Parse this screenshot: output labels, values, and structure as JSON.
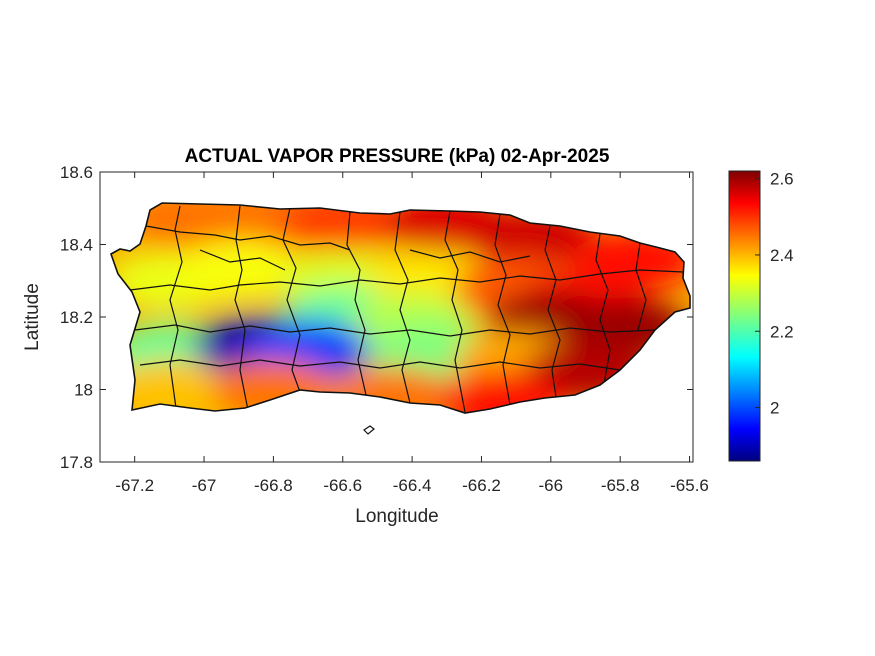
{
  "chart_data": {
    "type": "heatmap",
    "title": "ACTUAL VAPOR PRESSURE (kPa) 02-Apr-2025",
    "xlabel": "Longitude",
    "ylabel": "Latitude",
    "xlim": [
      -67.3,
      -65.59
    ],
    "ylim": [
      17.8,
      18.6
    ],
    "xticks": [
      -67.2,
      -67,
      -66.8,
      -66.6,
      -66.4,
      -66.2,
      -66,
      -65.8,
      -65.6
    ],
    "xtick_labels": [
      "-67.2",
      "-67",
      "-66.8",
      "-66.6",
      "-66.4",
      "-66.2",
      "-66",
      "-65.8",
      "-65.6"
    ],
    "yticks": [
      17.8,
      18,
      18.2,
      18.4,
      18.6
    ],
    "ytick_labels": [
      "17.8",
      "18",
      "18.2",
      "18.4",
      "18.6"
    ],
    "colorbar": {
      "colormap": "jet",
      "range": [
        1.86,
        2.62
      ],
      "ticks": [
        2,
        2.2,
        2.4,
        2.6
      ],
      "tick_labels": [
        "2",
        "2.2",
        "2.4",
        "2.6"
      ]
    },
    "field_samples": [
      {
        "lon": -67.05,
        "lat": 18.47,
        "value": 2.44
      },
      {
        "lon": -66.85,
        "lat": 18.47,
        "value": 2.44
      },
      {
        "lon": -66.6,
        "lat": 18.47,
        "value": 2.48
      },
      {
        "lon": -66.3,
        "lat": 18.46,
        "value": 2.55
      },
      {
        "lon": -66.05,
        "lat": 18.42,
        "value": 2.56
      },
      {
        "lon": -65.75,
        "lat": 18.36,
        "value": 2.52
      },
      {
        "lon": -67.1,
        "lat": 18.3,
        "value": 2.32
      },
      {
        "lon": -66.9,
        "lat": 18.33,
        "value": 2.33
      },
      {
        "lon": -66.6,
        "lat": 18.3,
        "value": 2.31
      },
      {
        "lon": -66.35,
        "lat": 18.3,
        "value": 2.35
      },
      {
        "lon": -66.1,
        "lat": 18.28,
        "value": 2.46
      },
      {
        "lon": -65.9,
        "lat": 18.25,
        "value": 2.52
      },
      {
        "lon": -66.6,
        "lat": 18.2,
        "value": 2.22
      },
      {
        "lon": -66.4,
        "lat": 18.18,
        "value": 2.28
      },
      {
        "lon": -66.0,
        "lat": 18.19,
        "value": 2.6
      },
      {
        "lon": -65.78,
        "lat": 18.17,
        "value": 2.6
      },
      {
        "lon": -67.1,
        "lat": 18.1,
        "value": 2.22
      },
      {
        "lon": -66.85,
        "lat": 18.12,
        "value": 1.9
      },
      {
        "lon": -66.7,
        "lat": 18.11,
        "value": 2.0
      },
      {
        "lon": -66.35,
        "lat": 18.1,
        "value": 2.24
      },
      {
        "lon": -66.1,
        "lat": 18.08,
        "value": 2.4
      },
      {
        "lon": -65.9,
        "lat": 18.05,
        "value": 2.58
      },
      {
        "lon": -67.1,
        "lat": 18.0,
        "value": 2.38
      },
      {
        "lon": -66.8,
        "lat": 18.0,
        "value": 2.44
      },
      {
        "lon": -66.45,
        "lat": 17.98,
        "value": 2.44
      },
      {
        "lon": -66.15,
        "lat": 17.97,
        "value": 2.52
      }
    ]
  }
}
